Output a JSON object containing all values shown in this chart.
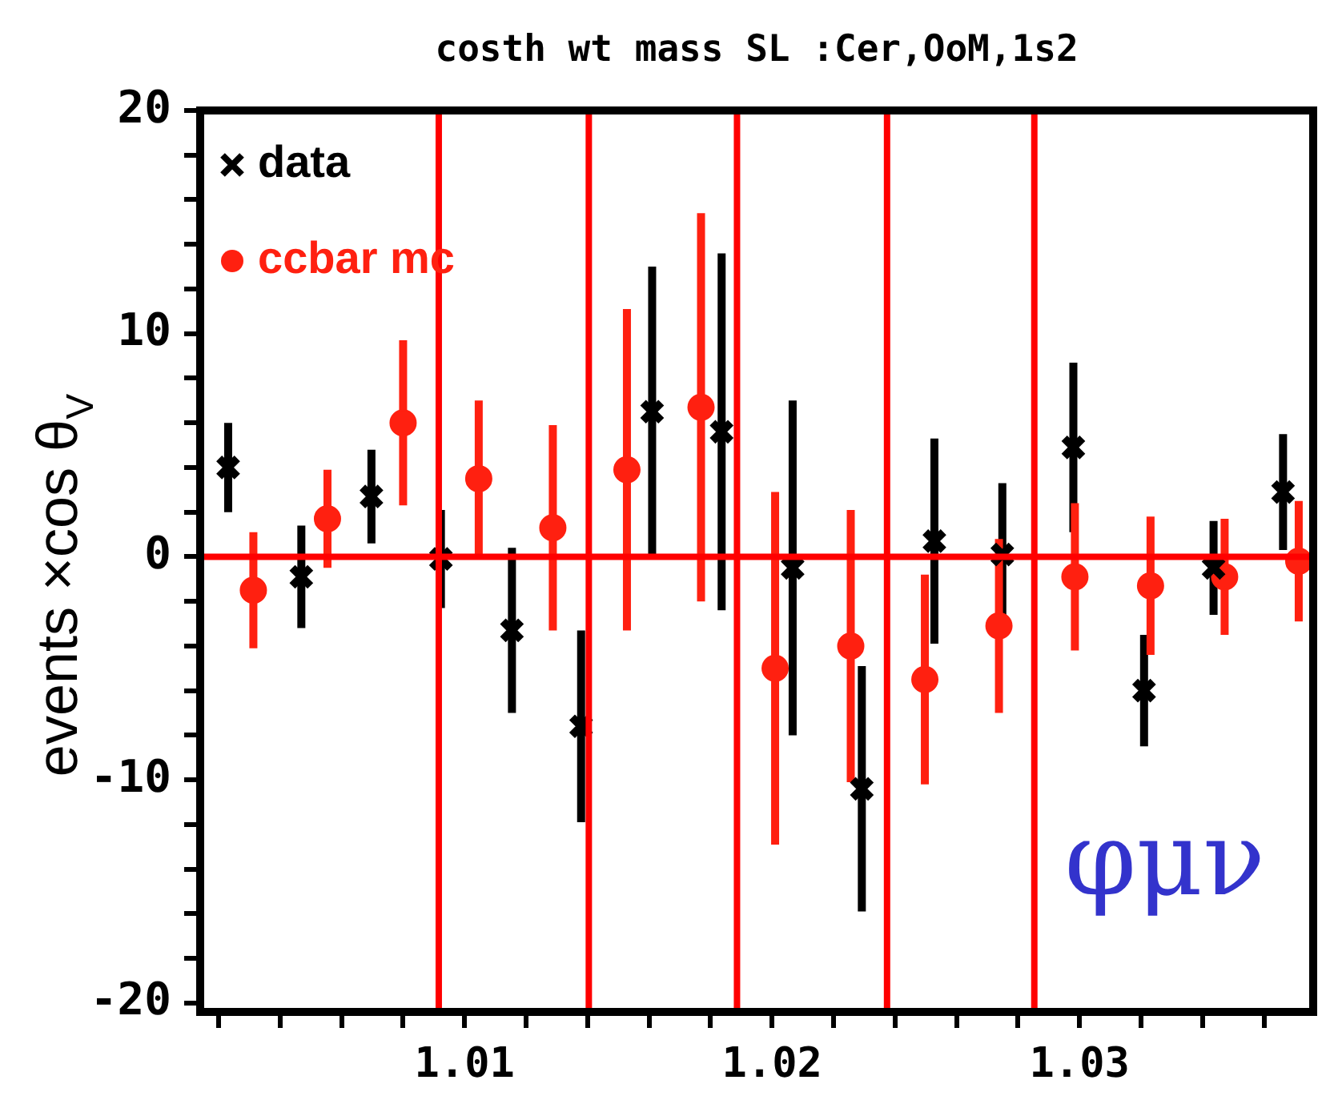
{
  "chart_data": {
    "type": "scatter",
    "title": "costh wt mass SL :Cer,OoM,1s2",
    "ylabel": "events ×cos θ$_{V}$",
    "annotations": [
      "φμν"
    ],
    "legend": "top left",
    "grid": false,
    "xlim": [
      1.0014,
      1.0376
    ],
    "ylim": [
      -20.4,
      20
    ],
    "xticks": [
      {
        "value": 1.002,
        "label": null
      },
      {
        "value": 1.004,
        "label": null
      },
      {
        "value": 1.006,
        "label": null
      },
      {
        "value": 1.008,
        "label": null
      },
      1.01,
      {
        "value": 1.012,
        "label": null
      },
      {
        "value": 1.014,
        "label": null
      },
      {
        "value": 1.016,
        "label": null
      },
      {
        "value": 1.018,
        "label": null
      },
      1.02,
      {
        "value": 1.022,
        "label": null
      },
      {
        "value": 1.024,
        "label": null
      },
      {
        "value": 1.026,
        "label": null
      },
      {
        "value": 1.028,
        "label": null
      },
      1.03,
      {
        "value": 1.032,
        "label": null
      },
      {
        "value": 1.034,
        "label": null
      },
      {
        "value": 1.036,
        "label": null
      }
    ],
    "yticks": [
      -20,
      {
        "value": -18,
        "label": null
      },
      {
        "value": -16,
        "label": null
      },
      {
        "value": -14,
        "label": null
      },
      {
        "value": -12,
        "label": null
      },
      -10,
      {
        "value": -8,
        "label": null
      },
      {
        "value": -6,
        "label": null
      },
      {
        "value": -4,
        "label": null
      },
      {
        "value": -2,
        "label": null
      },
      0,
      {
        "value": 2,
        "label": null
      },
      {
        "value": 4,
        "label": null
      },
      {
        "value": 6,
        "label": null
      },
      {
        "value": 8,
        "label": null
      },
      10,
      {
        "value": 12,
        "label": null
      },
      {
        "value": 14,
        "label": null
      },
      {
        "value": 16,
        "label": null
      },
      {
        "value": 18,
        "label": null
      },
      20
    ],
    "ref_lines": [
      {
        "axis": "y",
        "value": 0,
        "color": "#ff0000"
      },
      {
        "axis": "x",
        "value": 1.00916,
        "color": "#ff0000"
      },
      {
        "axis": "x",
        "value": 1.01404,
        "color": "#ff0000"
      },
      {
        "axis": "x",
        "value": 1.01886,
        "color": "#ff0000"
      },
      {
        "axis": "x",
        "value": 1.02374,
        "color": "#ff0000"
      },
      {
        "axis": "x",
        "value": 1.02853,
        "color": "#ff0000"
      }
    ],
    "series": [
      {
        "name": "data",
        "color": "#000000",
        "marker": "cross",
        "x": [
          1.00231,
          1.00469,
          1.00697,
          1.00923,
          1.01154,
          1.01379,
          1.0161,
          1.01836,
          1.02067,
          1.02292,
          1.02528,
          1.02749,
          1.0298,
          1.0321,
          1.03436,
          1.03662
        ],
        "values": [
          4.0,
          -0.9,
          2.7,
          -0.1,
          -3.3,
          -7.6,
          6.5,
          5.6,
          -0.5,
          -10.4,
          0.7,
          0.1,
          4.9,
          -6.0,
          -0.5,
          2.9
        ],
        "errors": [
          2.0,
          2.3,
          2.1,
          2.2,
          3.7,
          4.3,
          6.5,
          8.0,
          7.5,
          5.5,
          4.6,
          3.2,
          3.8,
          2.5,
          2.1,
          2.6
        ]
      },
      {
        "name": "ccbar mc",
        "color": "#ff2010",
        "marker": "circle",
        "x": [
          1.00313,
          1.00554,
          1.008,
          1.01046,
          1.01287,
          1.01528,
          1.01769,
          1.0201,
          1.02256,
          1.02497,
          1.02738,
          1.02985,
          1.03231,
          1.03472,
          1.03713
        ],
        "values": [
          -1.5,
          1.7,
          6.0,
          3.5,
          1.3,
          3.9,
          6.7,
          -5.0,
          -4.0,
          -5.5,
          -3.1,
          -0.9,
          -1.3,
          -0.9,
          -0.2
        ],
        "errors": [
          2.6,
          2.2,
          3.7,
          3.5,
          4.6,
          7.2,
          8.7,
          7.9,
          6.1,
          4.7,
          3.9,
          3.3,
          3.1,
          2.6,
          2.7
        ]
      }
    ]
  }
}
